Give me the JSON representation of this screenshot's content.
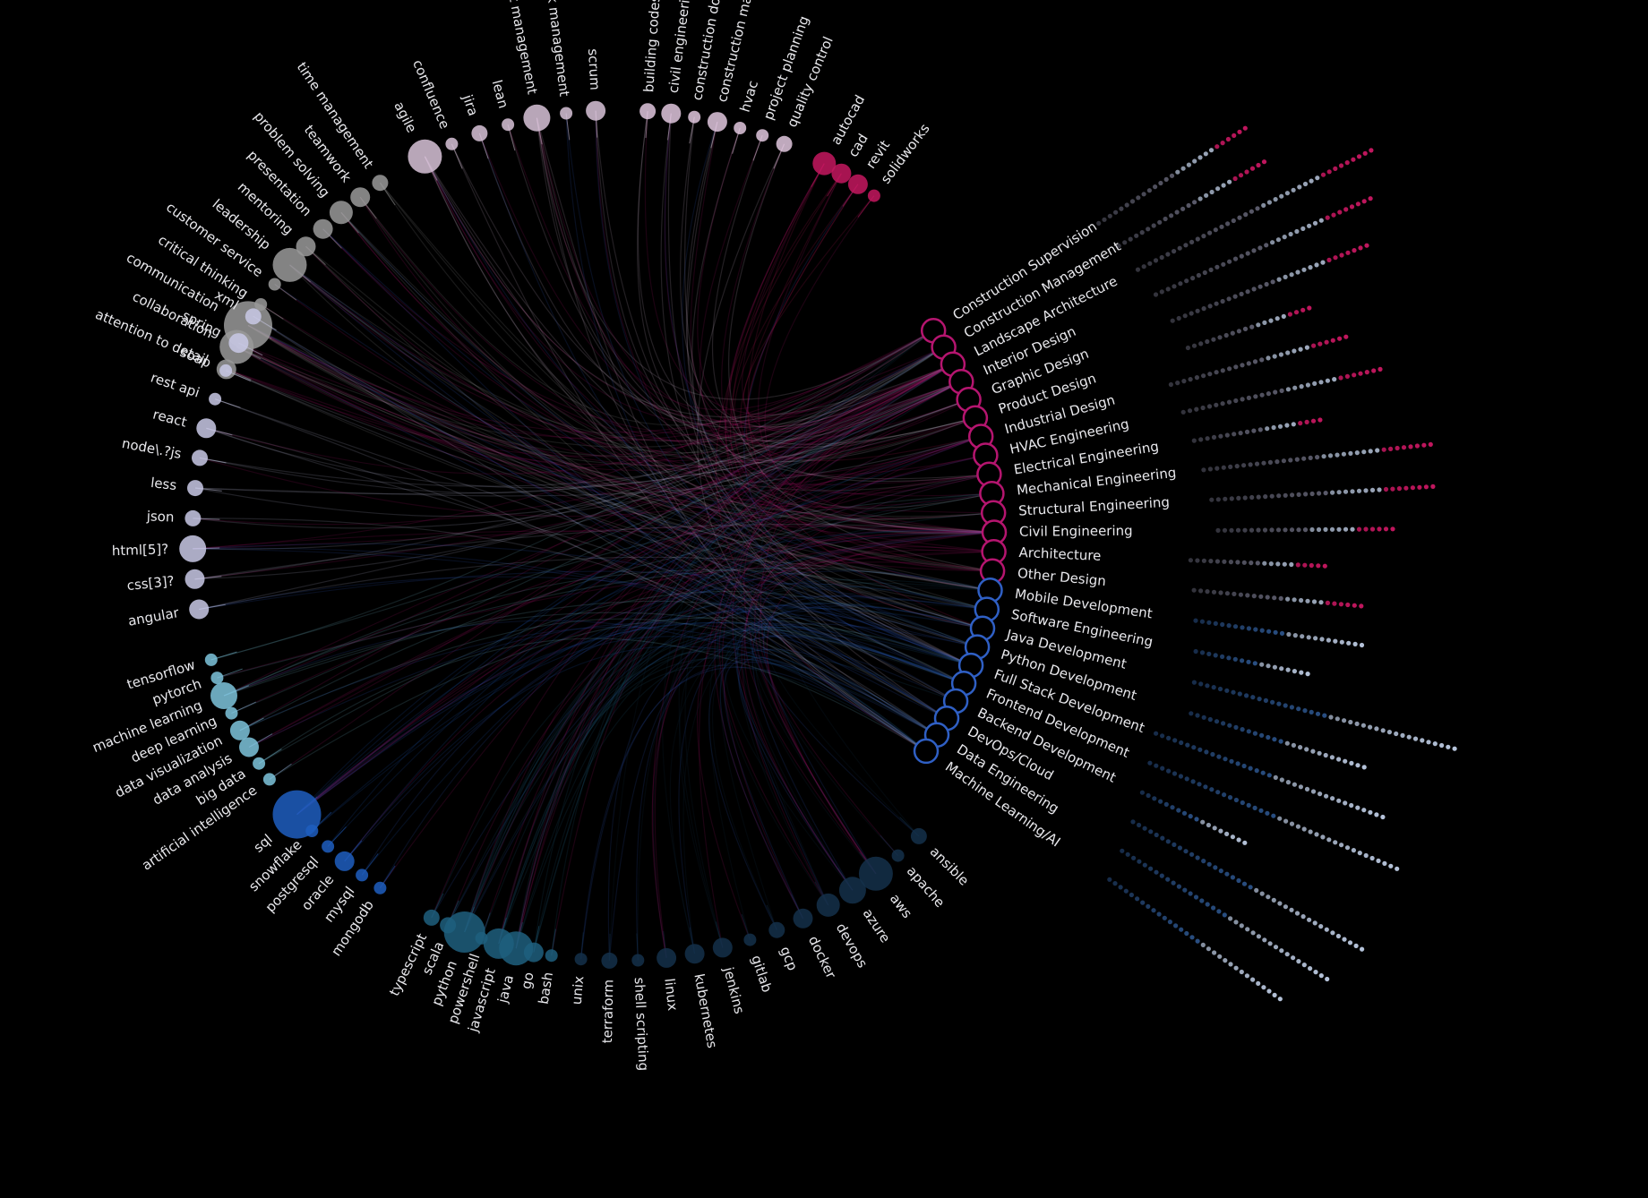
{
  "diagram": {
    "type": "hierarchical-edge-bundling",
    "colors": {
      "background": "#000000",
      "design": "#b5156f",
      "software": "#2f5fc4",
      "soft_skills": "#9a9a9a",
      "project": "#d8c3d8",
      "web": "#c9c9e6",
      "ml": "#7ec4dc",
      "data": "#1f5ebf",
      "languages": "#1e5f7e",
      "ops": "#14304a",
      "cad": "#c4175f",
      "construction": "#e0c7de"
    },
    "job_roles": [
      {
        "label": "Construction Supervision",
        "family": "design"
      },
      {
        "label": "Construction Management",
        "family": "design"
      },
      {
        "label": "Landscape Architecture",
        "family": "design"
      },
      {
        "label": "Interior Design",
        "family": "design"
      },
      {
        "label": "Graphic Design",
        "family": "design"
      },
      {
        "label": "Product Design",
        "family": "design"
      },
      {
        "label": "Industrial Design",
        "family": "design"
      },
      {
        "label": "HVAC Engineering",
        "family": "design"
      },
      {
        "label": "Electrical Engineering",
        "family": "design"
      },
      {
        "label": "Mechanical Engineering",
        "family": "design"
      },
      {
        "label": "Structural Engineering",
        "family": "design"
      },
      {
        "label": "Civil Engineering",
        "family": "design"
      },
      {
        "label": "Architecture",
        "family": "design"
      },
      {
        "label": "Other Design",
        "family": "design"
      },
      {
        "label": "Mobile Development",
        "family": "software"
      },
      {
        "label": "Software Engineering",
        "family": "software"
      },
      {
        "label": "Java Development",
        "family": "software"
      },
      {
        "label": "Python Development",
        "family": "software"
      },
      {
        "label": "Full Stack Development",
        "family": "software"
      },
      {
        "label": "Frontend Development",
        "family": "software"
      },
      {
        "label": "Backend Development",
        "family": "software"
      },
      {
        "label": "DevOps/Cloud",
        "family": "software"
      },
      {
        "label": "Data Engineering",
        "family": "software"
      },
      {
        "label": "Machine Learning/AI",
        "family": "software"
      }
    ],
    "skill_groups": [
      {
        "name": "",
        "color_key": "soft_skills",
        "skills": [
          {
            "label": "attention to detail",
            "size": 2
          },
          {
            "label": "collaboration",
            "size": 4
          },
          {
            "label": "communication",
            "size": 6
          },
          {
            "label": "critical thinking",
            "size": 1
          },
          {
            "label": "customer service",
            "size": 1
          },
          {
            "label": "leadership",
            "size": 4
          },
          {
            "label": "mentoring",
            "size": 2
          },
          {
            "label": "presentation",
            "size": 2
          },
          {
            "label": "problem solving",
            "size": 2.5
          },
          {
            "label": "teamwork",
            "size": 2
          },
          {
            "label": "time management",
            "size": 1.5
          }
        ]
      },
      {
        "name": "",
        "color_key": "project",
        "skills": [
          {
            "label": "agile",
            "size": 4
          },
          {
            "label": "confluence",
            "size": 1
          },
          {
            "label": "jira",
            "size": 1.5
          },
          {
            "label": "lean",
            "size": 1
          },
          {
            "label": "project management",
            "size": 3
          },
          {
            "label": "risk management",
            "size": 1
          },
          {
            "label": "scrum",
            "size": 2
          }
        ]
      },
      {
        "name": "",
        "color_key": "construction",
        "skills": [
          {
            "label": "building codes",
            "size": 1.5
          },
          {
            "label": "civil engineering",
            "size": 2
          },
          {
            "label": "construction documents",
            "size": 1
          },
          {
            "label": "construction management",
            "size": 2
          },
          {
            "label": "hvac",
            "size": 1
          },
          {
            "label": "project planning",
            "size": 1
          },
          {
            "label": "quality control",
            "size": 1.5
          }
        ]
      },
      {
        "name": "",
        "color_key": "cad",
        "skills": [
          {
            "label": "autocad",
            "size": 2.5
          },
          {
            "label": "cad",
            "size": 2
          },
          {
            "label": "revit",
            "size": 2
          },
          {
            "label": "solidworks",
            "size": 1
          }
        ]
      },
      {
        "name": "",
        "color_key": "ops",
        "skills": [
          {
            "label": "ansible",
            "size": 1.5
          },
          {
            "label": "apache",
            "size": 1
          },
          {
            "label": "aws",
            "size": 4
          },
          {
            "label": "azure",
            "size": 3
          },
          {
            "label": "devops",
            "size": 2.5
          },
          {
            "label": "docker",
            "size": 2
          },
          {
            "label": "gcp",
            "size": 1.5
          },
          {
            "label": "gitlab",
            "size": 1
          },
          {
            "label": "jenkins",
            "size": 2
          },
          {
            "label": "kubernetes",
            "size": 2
          },
          {
            "label": "linux",
            "size": 2
          },
          {
            "label": "shell scripting",
            "size": 1
          },
          {
            "label": "terraform",
            "size": 1.5
          },
          {
            "label": "unix",
            "size": 1
          }
        ]
      },
      {
        "name": "",
        "color_key": "languages",
        "skills": [
          {
            "label": "bash",
            "size": 1
          },
          {
            "label": "go",
            "size": 2
          },
          {
            "label": "java",
            "size": 4
          },
          {
            "label": "javascript",
            "size": 3.5
          },
          {
            "label": "powershell",
            "size": 1
          },
          {
            "label": "python",
            "size": 5
          },
          {
            "label": "scala",
            "size": 1.5
          },
          {
            "label": "typescript",
            "size": 1.5
          }
        ]
      },
      {
        "name": "",
        "color_key": "data",
        "skills": [
          {
            "label": "mongodb",
            "size": 1
          },
          {
            "label": "mysql",
            "size": 1
          },
          {
            "label": "oracle",
            "size": 2
          },
          {
            "label": "postgresql",
            "size": 1
          },
          {
            "label": "snowflake",
            "size": 1
          },
          {
            "label": "sql",
            "size": 6
          }
        ]
      },
      {
        "name": "",
        "color_key": "ml",
        "skills": [
          {
            "label": "artificial intelligence",
            "size": 1
          },
          {
            "label": "big data",
            "size": 1
          },
          {
            "label": "data analysis",
            "size": 2
          },
          {
            "label": "data visualization",
            "size": 2
          },
          {
            "label": "deep learning",
            "size": 1
          },
          {
            "label": "machine learning",
            "size": 3
          },
          {
            "label": "pytorch",
            "size": 1
          },
          {
            "label": "tensorflow",
            "size": 1
          }
        ]
      },
      {
        "name": "",
        "color_key": "web",
        "skills": [
          {
            "label": "angular",
            "size": 2
          },
          {
            "label": "css[3]?",
            "size": 2
          },
          {
            "label": "html[5]?",
            "size": 3
          },
          {
            "label": "json",
            "size": 1.5
          },
          {
            "label": "less",
            "size": 1.5
          },
          {
            "label": "node\\.?js",
            "size": 1.5
          },
          {
            "label": "react",
            "size": 2
          },
          {
            "label": "rest api",
            "size": 1
          },
          {
            "label": "soap",
            "size": 1
          },
          {
            "label": "spring",
            "size": 2
          },
          {
            "label": "xml",
            "size": 1.5
          }
        ]
      }
    ]
  }
}
